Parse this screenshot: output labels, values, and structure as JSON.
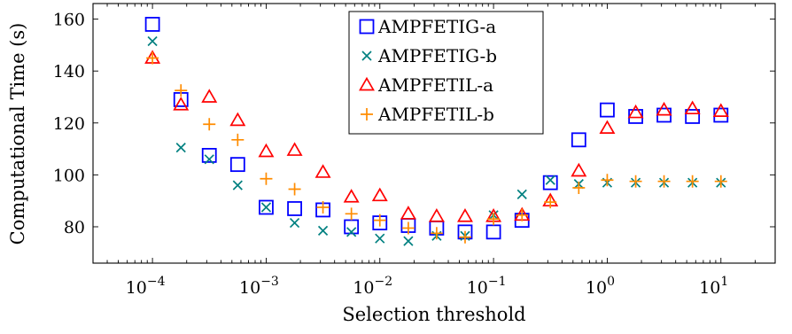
{
  "chart_data": {
    "type": "scatter",
    "xlabel": "Selection threshold",
    "ylabel": "Computational Time (s)",
    "x_scale": "log",
    "xlim": [
      3e-05,
      30
    ],
    "ylim": [
      66,
      166
    ],
    "x_ticks": [
      {
        "value": 0.0001,
        "base": "10",
        "exp": "−4"
      },
      {
        "value": 0.001,
        "base": "10",
        "exp": "−3"
      },
      {
        "value": 0.01,
        "base": "10",
        "exp": "−2"
      },
      {
        "value": 0.1,
        "base": "10",
        "exp": "−1"
      },
      {
        "value": 1,
        "base": "10",
        "exp": "0"
      },
      {
        "value": 10,
        "base": "10",
        "exp": "1"
      }
    ],
    "y_ticks": [
      "80",
      "100",
      "120",
      "140",
      "160"
    ],
    "grid": false,
    "legend_position": "top-center",
    "x": [
      0.0001,
      0.000178,
      0.000316,
      0.000562,
      0.001,
      0.00178,
      0.00316,
      0.00562,
      0.01,
      0.0178,
      0.0316,
      0.0562,
      0.1,
      0.178,
      0.316,
      0.562,
      1,
      1.78,
      3.16,
      5.62,
      10
    ],
    "series": [
      {
        "name": "AMPFETIG-a",
        "marker": "square",
        "color": "#0000ff",
        "values": [
          158,
          129,
          107.5,
          104,
          87.5,
          87,
          86.5,
          80,
          81.5,
          80.5,
          79.5,
          78,
          78,
          82.5,
          97,
          113.5,
          125,
          122.5,
          123,
          122.5,
          123
        ]
      },
      {
        "name": "AMPFETIG-b",
        "marker": "x",
        "color": "#008080",
        "values": [
          151.5,
          110.5,
          106,
          96,
          87.5,
          81.5,
          78.5,
          78,
          75.5,
          74.5,
          76.5,
          76.5,
          84.5,
          92.5,
          98,
          96.5,
          97,
          97,
          97,
          97,
          97
        ]
      },
      {
        "name": "AMPFETIL-a",
        "marker": "triangle",
        "color": "#ff0000",
        "values": [
          145,
          127,
          130,
          121,
          109,
          109.5,
          101,
          91.5,
          92,
          85,
          84,
          84,
          84,
          84.5,
          90,
          101.5,
          118,
          124,
          125,
          125.5,
          124.5
        ]
      },
      {
        "name": "AMPFETIL-b",
        "marker": "plus",
        "color": "#ff8c00",
        "values": [
          145,
          132.5,
          119.5,
          113.5,
          98.5,
          94.5,
          87.5,
          85,
          82.5,
          79.5,
          77.5,
          76,
          83,
          84.5,
          89.5,
          95,
          98,
          97.5,
          97.5,
          97.5,
          97.5
        ]
      }
    ]
  }
}
